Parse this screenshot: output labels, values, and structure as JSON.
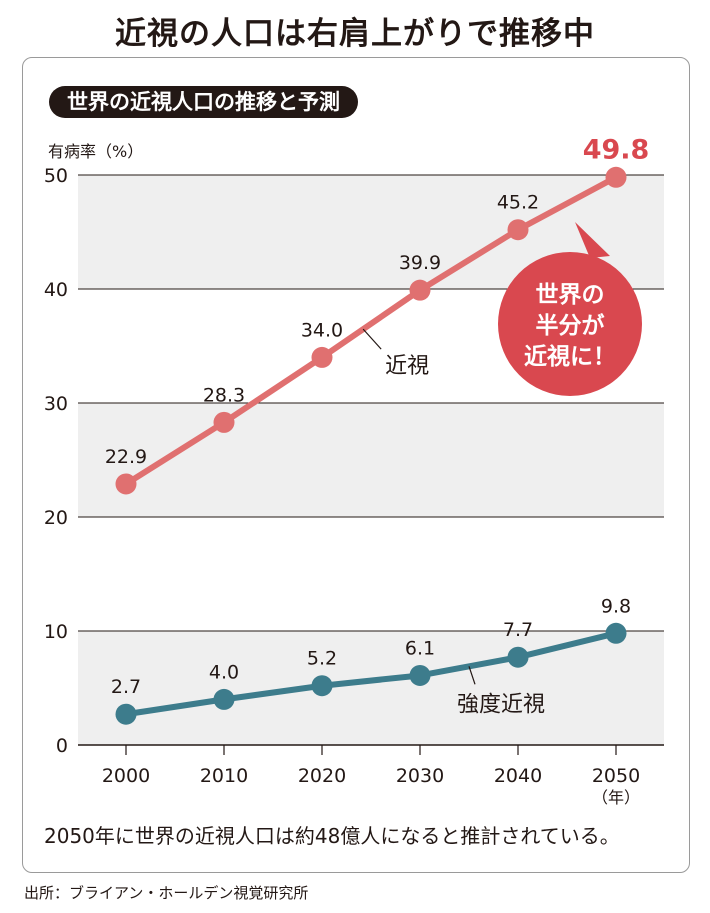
{
  "page_title": "近視の人口は右肩上がりで推移中",
  "subtitle": "世界の近視人口の推移と予測",
  "note": "2050年に世界の近視人口は約48億人になると推計されている。",
  "source": "出所：ブライアン・ホールデン視覚研究所",
  "callout": {
    "lines": [
      "世界の",
      "半分が",
      "近視に！"
    ]
  },
  "colors": {
    "myopia": "#e07070",
    "severe": "#3d7c8c",
    "band": "#efefef",
    "highlight": "#d9484f"
  },
  "chart_data": {
    "type": "line",
    "ylabel": "有病率（%）",
    "x_unit": "（年）",
    "x": [
      "2000",
      "2010",
      "2020",
      "2030",
      "2040",
      "2050"
    ],
    "ylim": [
      0,
      50
    ],
    "yticks": [
      "0",
      "10",
      "20",
      "30",
      "40",
      "50"
    ],
    "series": [
      {
        "name": "近視",
        "values": [
          22.9,
          28.3,
          34.0,
          39.9,
          45.2,
          49.8
        ],
        "labels": [
          "22.9",
          "28.3",
          "34.0",
          "39.9",
          "45.2",
          "49.8"
        ]
      },
      {
        "name": "強度近視",
        "values": [
          2.7,
          4.0,
          5.2,
          6.1,
          7.7,
          9.8
        ],
        "labels": [
          "2.7",
          "4.0",
          "5.2",
          "6.1",
          "7.7",
          "9.8"
        ]
      }
    ]
  }
}
